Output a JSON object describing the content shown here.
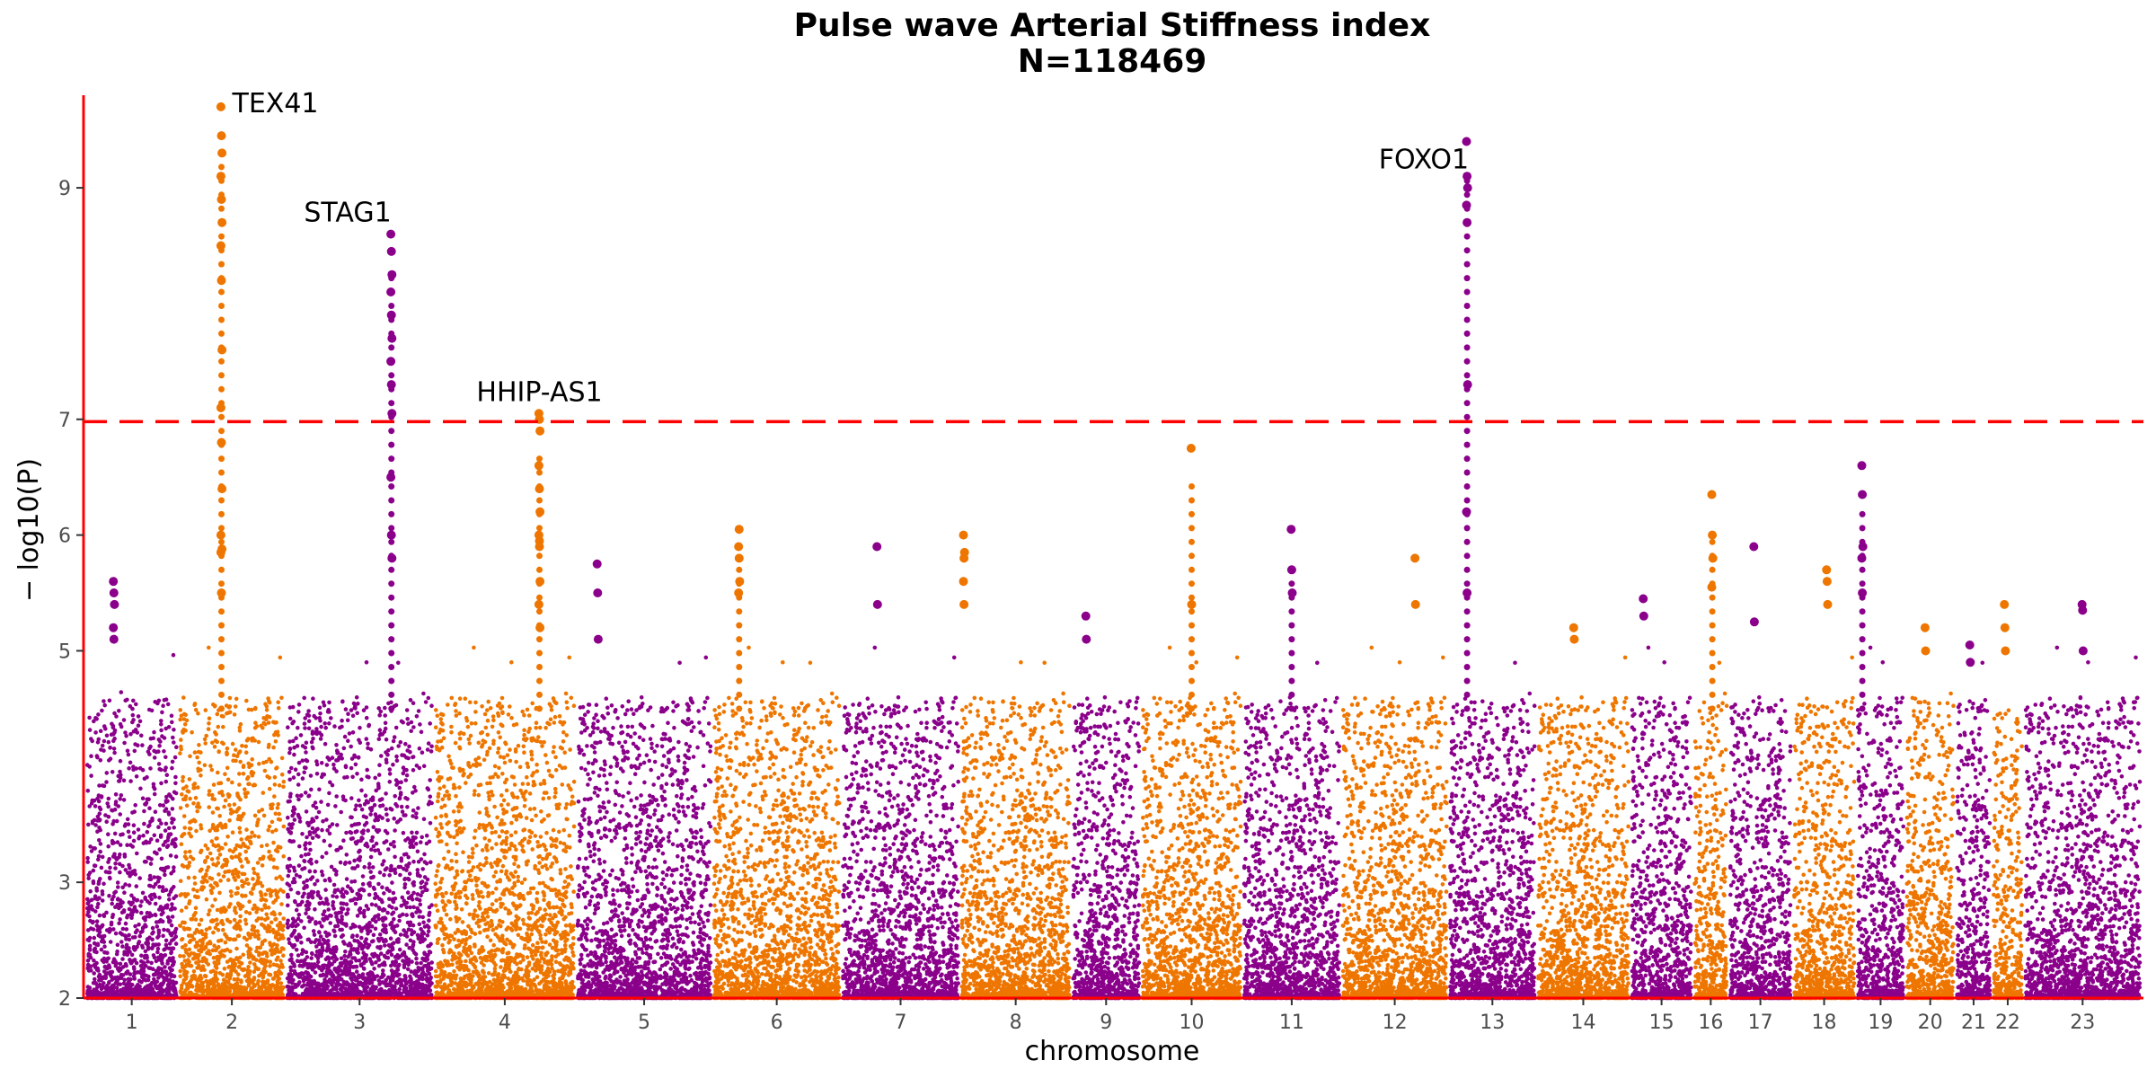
{
  "chart_data": {
    "type": "scatter",
    "subtype": "manhattan",
    "title": "Pulse wave Arterial Stiffness index",
    "subtitle": "N=118469",
    "xlabel": "chromosome",
    "ylabel": "− log10(P)",
    "ylim": [
      2,
      9.8
    ],
    "yticks": [
      2,
      3,
      5,
      6,
      7,
      9
    ],
    "threshold": 6.98,
    "threshold_color": "#ff0000",
    "axis_color": "#ff0000",
    "colors": [
      "#8b008b",
      "#ee7600"
    ],
    "chromosomes": [
      {
        "label": "1",
        "color_index": 0
      },
      {
        "label": "2",
        "color_index": 1
      },
      {
        "label": "3",
        "color_index": 0
      },
      {
        "label": "4",
        "color_index": 1
      },
      {
        "label": "5",
        "color_index": 0
      },
      {
        "label": "6",
        "color_index": 1
      },
      {
        "label": "7",
        "color_index": 0
      },
      {
        "label": "8",
        "color_index": 1
      },
      {
        "label": "9",
        "color_index": 0
      },
      {
        "label": "10",
        "color_index": 1
      },
      {
        "label": "11",
        "color_index": 0
      },
      {
        "label": "12",
        "color_index": 1
      },
      {
        "label": "13",
        "color_index": 0
      },
      {
        "label": "14",
        "color_index": 1
      },
      {
        "label": "15",
        "color_index": 0
      },
      {
        "label": "16",
        "color_index": 1
      },
      {
        "label": "17",
        "color_index": 0
      },
      {
        "label": "18",
        "color_index": 1
      },
      {
        "label": "19",
        "color_index": 0
      },
      {
        "label": "20",
        "color_index": 1
      },
      {
        "label": "21",
        "color_index": 0
      },
      {
        "label": "22",
        "color_index": 1
      },
      {
        "label": "23",
        "color_index": 0
      }
    ],
    "annotations": [
      {
        "gene": "TEX41",
        "chromosome": "2",
        "value": 9.7
      },
      {
        "gene": "STAG1",
        "chromosome": "3",
        "value": 8.6
      },
      {
        "gene": "HHIP-AS1",
        "chromosome": "4",
        "value": 7.05
      },
      {
        "gene": "FOXO1",
        "chromosome": "13",
        "value": 9.4
      }
    ],
    "peaks": [
      {
        "chromosome": "1",
        "values": [
          5.6,
          5.5,
          5.4,
          5.2,
          5.1
        ]
      },
      {
        "chromosome": "2",
        "values": [
          9.7,
          9.45,
          9.3,
          9.1,
          8.9,
          8.7,
          8.5,
          8.2,
          7.6,
          7.1,
          6.8,
          6.4,
          6.0,
          5.5,
          5.88,
          5.85
        ]
      },
      {
        "chromosome": "3",
        "values": [
          8.6,
          8.45,
          8.25,
          8.1,
          7.9,
          7.7,
          7.5,
          7.3,
          7.05,
          6.5,
          6.0,
          5.8
        ]
      },
      {
        "chromosome": "4",
        "values": [
          7.05,
          7.0,
          6.9,
          6.6,
          6.4,
          6.2,
          6.0,
          5.9,
          5.6,
          5.4,
          5.95,
          5.2
        ]
      },
      {
        "chromosome": "5",
        "values": [
          5.75,
          5.5,
          5.1
        ]
      },
      {
        "chromosome": "6",
        "values": [
          5.9,
          5.8,
          5.6,
          5.5,
          6.05
        ]
      },
      {
        "chromosome": "7",
        "values": [
          5.9,
          5.4
        ]
      },
      {
        "chromosome": "8",
        "values": [
          6.0,
          5.8,
          5.85,
          5.6,
          5.4
        ]
      },
      {
        "chromosome": "9",
        "values": [
          5.3,
          5.1
        ]
      },
      {
        "chromosome": "10",
        "values": [
          6.75,
          5.4
        ]
      },
      {
        "chromosome": "11",
        "values": [
          6.05,
          5.7,
          5.5
        ]
      },
      {
        "chromosome": "12",
        "values": [
          5.8,
          5.4
        ]
      },
      {
        "chromosome": "13",
        "values": [
          9.4,
          9.1,
          9.0,
          8.85,
          8.7,
          7.3,
          6.2,
          5.5
        ]
      },
      {
        "chromosome": "14",
        "values": [
          5.2,
          5.1
        ]
      },
      {
        "chromosome": "15",
        "values": [
          5.45,
          5.3
        ]
      },
      {
        "chromosome": "16",
        "values": [
          6.35,
          6.0,
          5.8,
          5.55
        ]
      },
      {
        "chromosome": "17",
        "values": [
          5.9,
          5.25
        ]
      },
      {
        "chromosome": "18",
        "values": [
          5.7,
          5.6,
          5.4
        ]
      },
      {
        "chromosome": "19",
        "values": [
          6.6,
          6.35,
          5.9,
          5.8,
          5.5
        ]
      },
      {
        "chromosome": "20",
        "values": [
          5.2,
          5.0
        ]
      },
      {
        "chromosome": "21",
        "values": [
          5.05,
          4.9
        ]
      },
      {
        "chromosome": "22",
        "values": [
          5.4,
          5.2,
          5.0
        ]
      },
      {
        "chromosome": "23",
        "values": [
          5.4,
          5.35,
          5.0
        ]
      }
    ],
    "grid": false,
    "legend": "none"
  }
}
